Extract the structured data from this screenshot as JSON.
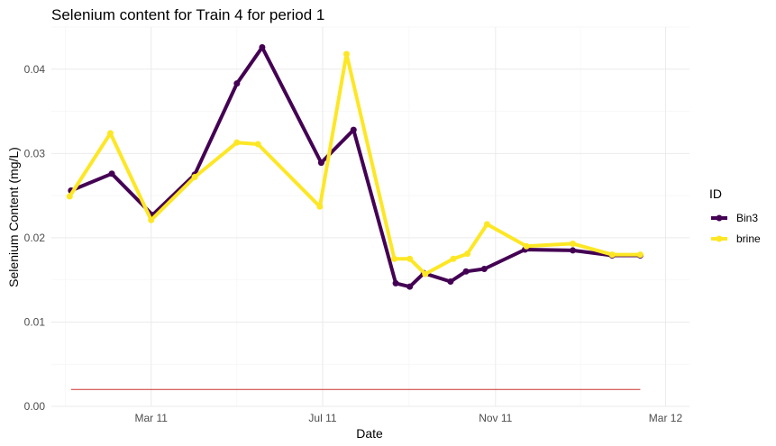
{
  "chart_data": {
    "type": "line",
    "title": "Selenium content for Train 4 for period 1",
    "xlabel": "Date",
    "ylabel": "Selenium Content (mg/L)",
    "x_type": "date",
    "xlim": [
      "2010-12-20",
      "2012-03-18"
    ],
    "ylim": [
      0,
      0.045
    ],
    "x_ticks": [
      {
        "date": "2011-03-01",
        "label": "Mar 11"
      },
      {
        "date": "2011-07-01",
        "label": "Jul 11"
      },
      {
        "date": "2011-11-01",
        "label": "Nov 11"
      },
      {
        "date": "2012-03-01",
        "label": "Mar 12"
      }
    ],
    "y_ticks": [
      {
        "value": 0.0,
        "label": "0.00"
      },
      {
        "value": 0.01,
        "label": "0.01"
      },
      {
        "value": 0.02,
        "label": "0.02"
      },
      {
        "value": 0.03,
        "label": "0.03"
      },
      {
        "value": 0.04,
        "label": "0.04"
      }
    ],
    "grid": true,
    "legend": {
      "title": "ID",
      "position": "right"
    },
    "series": [
      {
        "name": "Bin3",
        "color": "#440154",
        "x": [
          "2011-01-03",
          "2011-02-01",
          "2011-03-02",
          "2011-04-01",
          "2011-05-01",
          "2011-05-19",
          "2011-06-30",
          "2011-07-23",
          "2011-08-22",
          "2011-09-01",
          "2011-09-11",
          "2011-09-30",
          "2011-10-11",
          "2011-10-24",
          "2011-11-22",
          "2011-12-26",
          "2012-01-23",
          "2012-02-12"
        ],
        "values": [
          0.0256,
          0.0276,
          0.0227,
          0.0275,
          0.0383,
          0.0426,
          0.0289,
          0.0328,
          0.0146,
          0.0142,
          0.0158,
          0.0148,
          0.016,
          0.0163,
          0.0186,
          0.0185,
          0.0179,
          0.0179
        ]
      },
      {
        "name": "brine",
        "color": "#fde725",
        "x": [
          "2011-01-02",
          "2011-01-31",
          "2011-03-01",
          "2011-04-01",
          "2011-05-01",
          "2011-05-16",
          "2011-06-29",
          "2011-07-18",
          "2011-08-21",
          "2011-09-01",
          "2011-09-12",
          "2011-10-02",
          "2011-10-12",
          "2011-10-26",
          "2011-11-23",
          "2011-12-26",
          "2012-01-23",
          "2012-02-12"
        ],
        "values": [
          0.0249,
          0.0324,
          0.0221,
          0.0272,
          0.0313,
          0.0311,
          0.0237,
          0.0418,
          0.0175,
          0.0175,
          0.0157,
          0.0175,
          0.0181,
          0.0216,
          0.019,
          0.0193,
          0.018,
          0.018
        ]
      }
    ],
    "reference_line": {
      "value": 0.002,
      "color": "#cc3333",
      "x_start": "2011-01-03",
      "x_end": "2012-02-12"
    }
  }
}
